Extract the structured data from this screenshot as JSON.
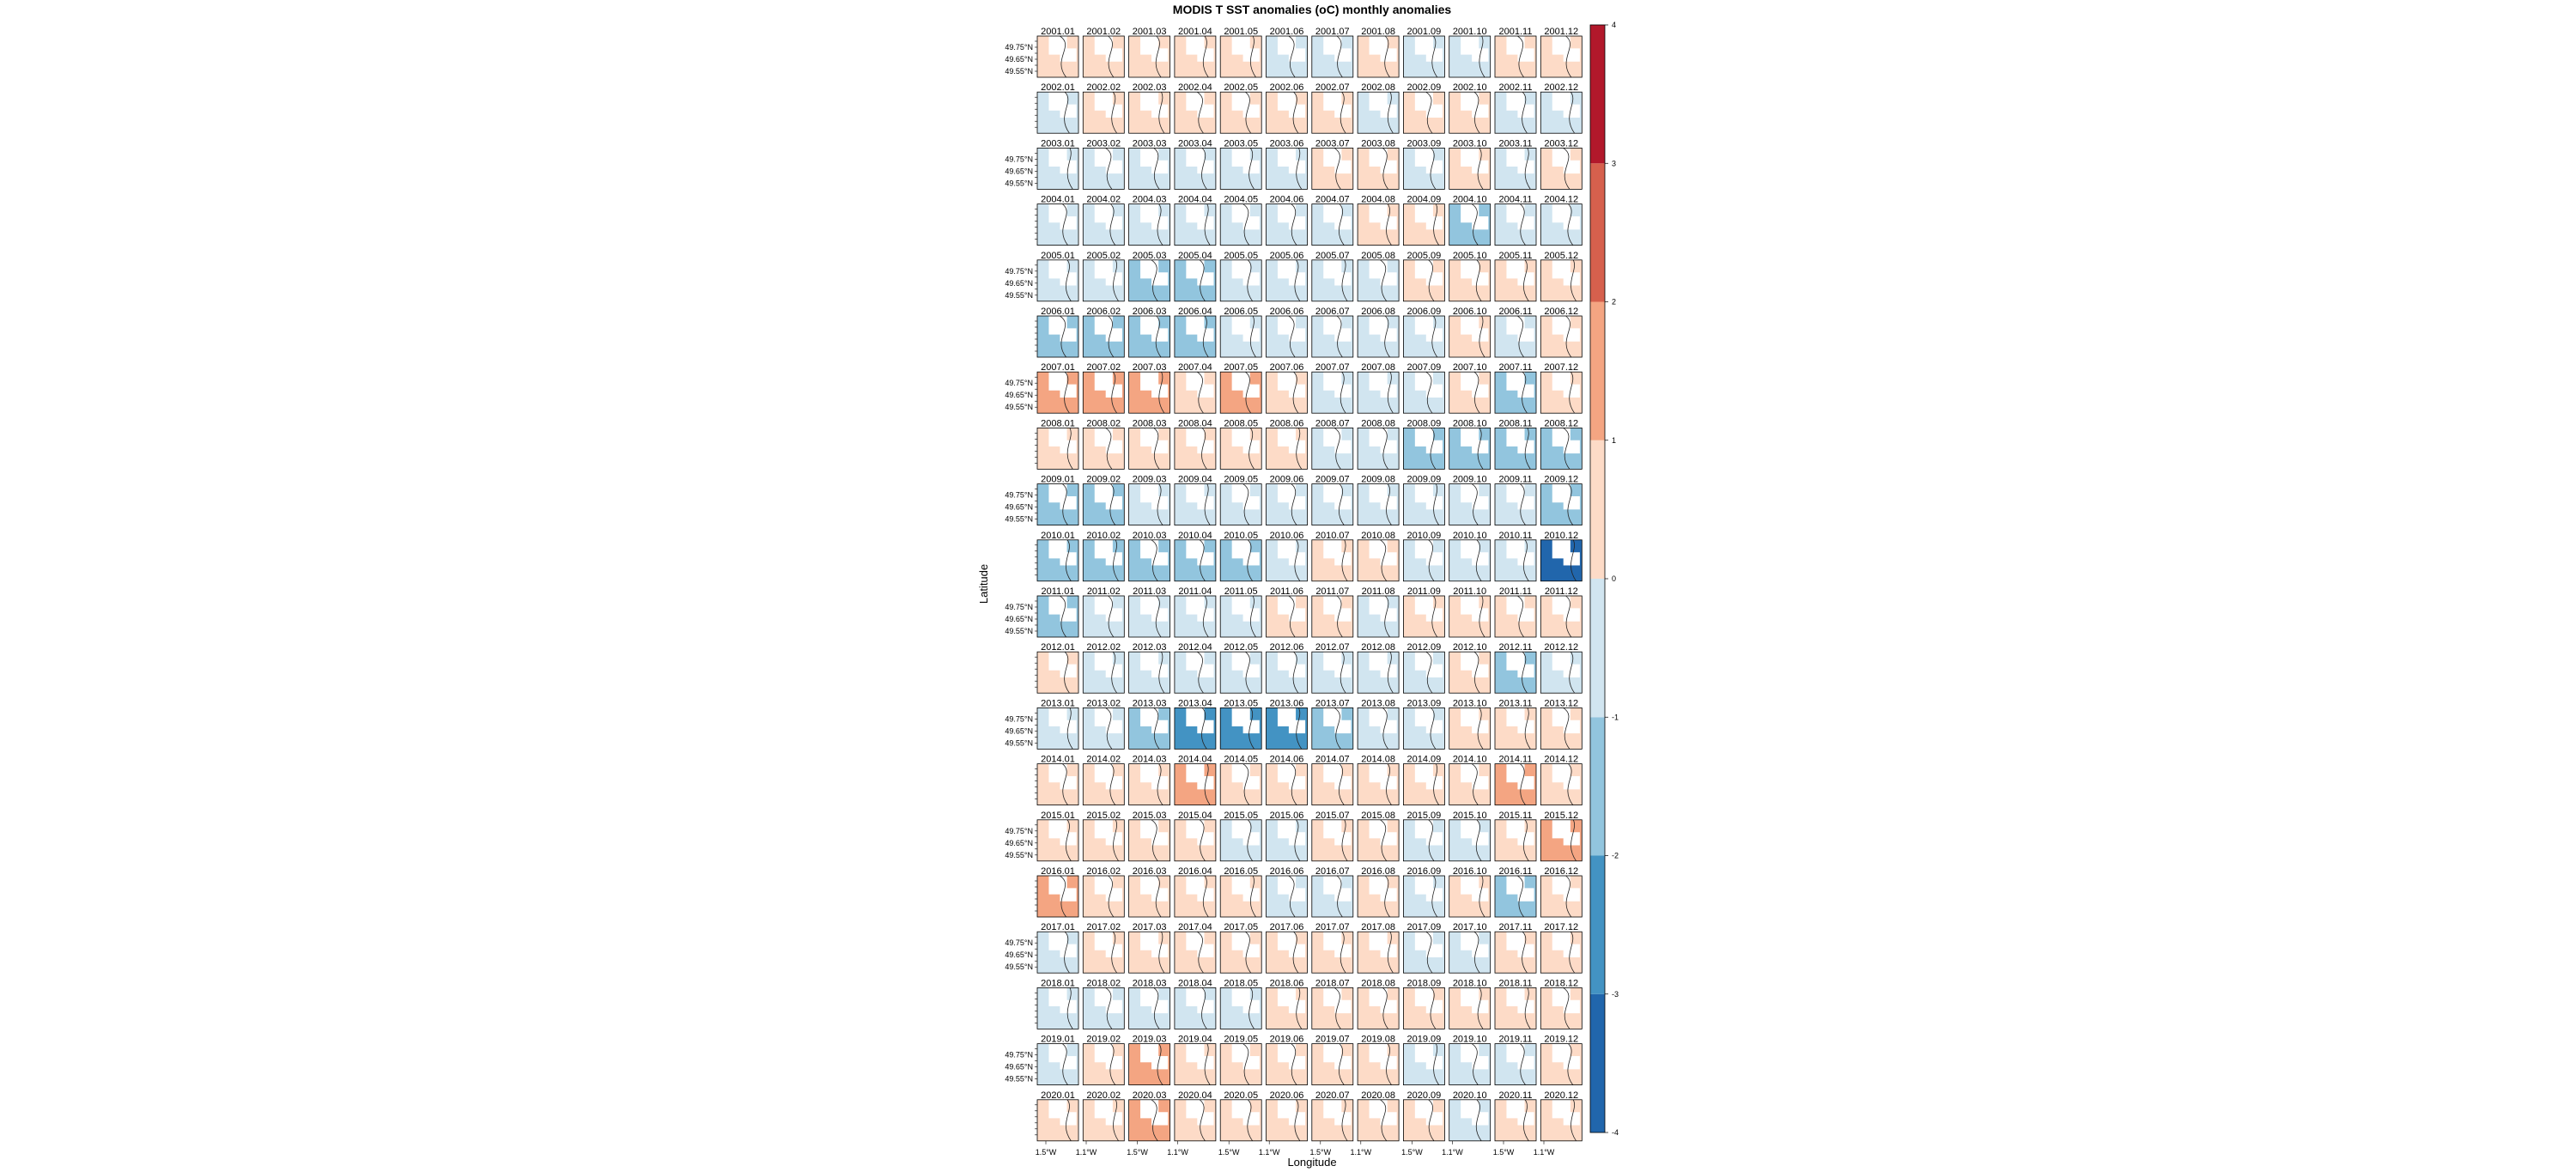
{
  "title": "MODIS T SST anomalies (oC) monthly anomalies",
  "chart_data": {
    "type": "heatmap",
    "title": "MODIS T SST anomalies (oC) monthly anomalies",
    "xlabel": "Longitude",
    "ylabel": "Latitude",
    "years": [
      2001,
      2002,
      2003,
      2004,
      2005,
      2006,
      2007,
      2008,
      2009,
      2010,
      2011,
      2012,
      2013,
      2014,
      2015,
      2016,
      2017,
      2018,
      2019,
      2020
    ],
    "months": [
      "01",
      "02",
      "03",
      "04",
      "05",
      "06",
      "07",
      "08",
      "09",
      "10",
      "11",
      "12"
    ],
    "y_tick_labels": [
      "49.75°N",
      "49.65°N",
      "49.55°N"
    ],
    "x_tick_labels": [
      "1.5°W",
      "1.1°W"
    ],
    "colorbar": {
      "range": [
        -4,
        4
      ],
      "ticks": [
        "4",
        "3",
        "2",
        "1",
        "0",
        "-1",
        "-2",
        "-3",
        "-4"
      ],
      "colors": [
        "#2166ac",
        "#4393c3",
        "#92c5de",
        "#d1e5f0",
        "#fddbc7",
        "#f4a582",
        "#d6604d",
        "#b2182b"
      ]
    },
    "anomalies": [
      [
        0.3,
        0.6,
        0.6,
        0.6,
        0.4,
        -0.8,
        -0.5,
        0.4,
        -0.3,
        -0.3,
        0.6,
        0.6
      ],
      [
        -0.3,
        0.6,
        0.3,
        0.3,
        0.3,
        0.5,
        0.3,
        -0.3,
        0.6,
        0.6,
        -0.3,
        -0.5
      ],
      [
        -0.5,
        -0.6,
        -0.3,
        -0.3,
        -0.5,
        -0.3,
        0.3,
        0.3,
        -0.3,
        0.6,
        -0.3,
        0.4
      ],
      [
        -0.3,
        -0.3,
        -0.5,
        -0.5,
        -0.5,
        -0.5,
        -0.5,
        0.3,
        0.6,
        -1.4,
        -0.5,
        -0.5
      ],
      [
        -0.3,
        -0.3,
        -1.4,
        -1.2,
        -0.5,
        -0.8,
        -0.5,
        -0.3,
        0.6,
        0.3,
        0.8,
        0.4
      ],
      [
        -1.4,
        -1.2,
        -1.2,
        -1.4,
        -0.5,
        -0.3,
        -0.3,
        -0.3,
        -0.5,
        0.6,
        -0.3,
        0.4
      ],
      [
        1.2,
        1.5,
        1.4,
        0.8,
        1.2,
        0.3,
        -0.3,
        -0.3,
        -0.3,
        0.4,
        -1.1,
        0.4
      ],
      [
        0.6,
        0.3,
        0.3,
        0.3,
        0.3,
        0.3,
        -0.3,
        -0.5,
        -1.1,
        -1.2,
        -1.2,
        -1.2
      ],
      [
        -1.4,
        -1.1,
        -0.8,
        -0.5,
        -0.5,
        -0.3,
        -0.3,
        -0.5,
        -0.3,
        -0.3,
        -0.5,
        -1.2
      ],
      [
        -1.4,
        -1.4,
        -1.5,
        -1.2,
        -1.2,
        -0.3,
        0.3,
        0.3,
        -0.3,
        -0.3,
        -0.3,
        -3.5
      ],
      [
        -1.2,
        -0.5,
        -0.3,
        -0.3,
        -0.3,
        0.3,
        0.3,
        -0.3,
        0.3,
        0.3,
        0.3,
        0.4
      ],
      [
        0.6,
        -0.3,
        -0.3,
        -0.5,
        -0.5,
        -0.5,
        -0.3,
        -0.3,
        -0.3,
        0.6,
        -1.2,
        -0.5
      ],
      [
        -0.3,
        -0.3,
        -1.4,
        -2.4,
        -2.4,
        -2.4,
        -1.4,
        -0.5,
        -0.5,
        0.3,
        0.6,
        0.3
      ],
      [
        0.6,
        0.6,
        0.8,
        1.2,
        0.6,
        0.8,
        0.8,
        0.3,
        0.6,
        0.8,
        1.2,
        0.8
      ],
      [
        0.9,
        0.6,
        0.3,
        0.6,
        -0.3,
        -0.3,
        0.3,
        0.3,
        -0.3,
        -0.3,
        0.8,
        1.4
      ],
      [
        1.4,
        0.8,
        0.3,
        0.3,
        0.3,
        -0.3,
        -0.5,
        0.3,
        -0.3,
        0.3,
        -1.2,
        0.3
      ],
      [
        -0.3,
        0.3,
        0.3,
        0.8,
        0.3,
        0.6,
        0.3,
        0.3,
        -0.3,
        -0.3,
        0.3,
        0.3
      ],
      [
        -0.3,
        -0.3,
        -0.8,
        -0.5,
        -0.3,
        0.3,
        0.3,
        0.3,
        0.3,
        0.3,
        0.3,
        0.3
      ],
      [
        -0.3,
        0.6,
        1.2,
        0.8,
        0.3,
        0.3,
        0.6,
        0.3,
        -0.3,
        -0.3,
        -0.3,
        0.3
      ],
      [
        0.6,
        0.6,
        1.2,
        0.6,
        0.6,
        0.3,
        0.6,
        0.3,
        0.3,
        -0.5,
        0.3,
        0.6
      ]
    ]
  }
}
